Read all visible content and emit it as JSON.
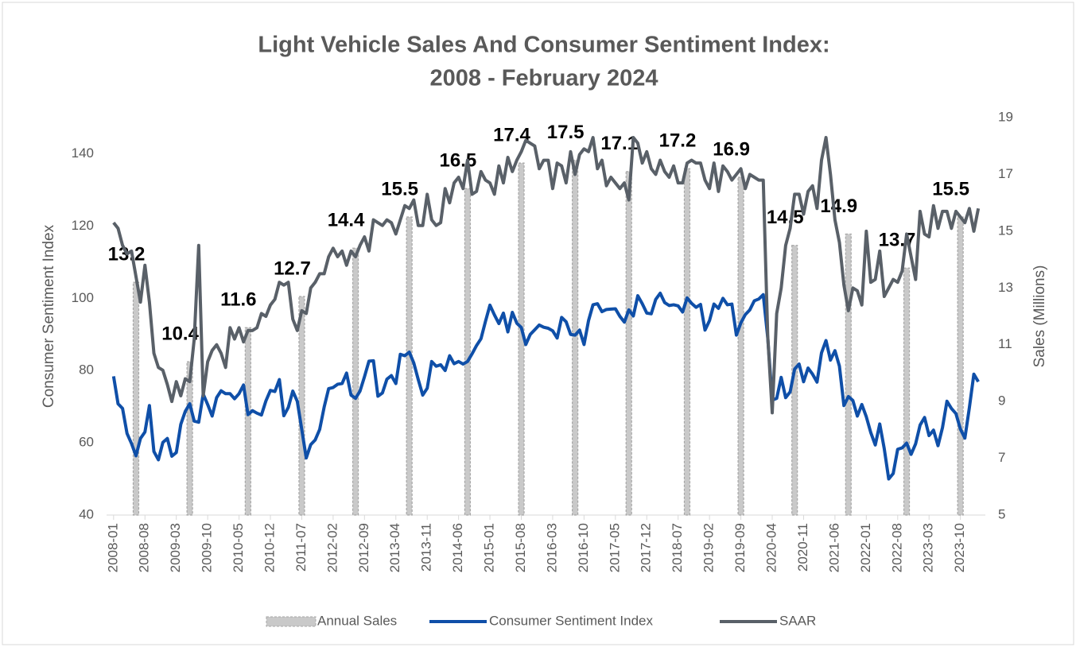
{
  "chart_data": {
    "type": "combo",
    "title": [
      "Light Vehicle Sales And Consumer Sentiment Index:",
      "2008 - February 2024"
    ],
    "y_label": "Consumer Sentiment Index",
    "y2_label": "Sales (Millions)",
    "ylim": [
      40,
      150
    ],
    "yticks": [
      40,
      60,
      80,
      100,
      120,
      140
    ],
    "y2lim": [
      5,
      19
    ],
    "y2ticks": [
      5,
      7,
      9,
      11,
      13,
      15,
      17,
      19
    ],
    "categories": [
      "2008-01",
      null,
      null,
      null,
      null,
      null,
      null,
      "2008-08",
      null,
      null,
      null,
      null,
      null,
      null,
      "2009-03",
      null,
      null,
      null,
      null,
      null,
      null,
      "2009-10",
      null,
      null,
      null,
      null,
      null,
      null,
      "2010-05",
      null,
      null,
      null,
      null,
      null,
      null,
      "2010-12",
      null,
      null,
      null,
      null,
      null,
      null,
      "2011-07",
      null,
      null,
      null,
      null,
      null,
      null,
      "2012-02",
      null,
      null,
      null,
      null,
      null,
      null,
      "2012-09",
      null,
      null,
      null,
      null,
      null,
      null,
      "2013-04",
      null,
      null,
      null,
      null,
      null,
      null,
      "2013-11",
      null,
      null,
      null,
      null,
      null,
      null,
      "2014-06",
      null,
      null,
      null,
      null,
      null,
      null,
      "2015-01",
      null,
      null,
      null,
      null,
      null,
      null,
      "2015-08",
      null,
      null,
      null,
      null,
      null,
      null,
      "2016-03",
      null,
      null,
      null,
      null,
      null,
      null,
      "2016-10",
      null,
      null,
      null,
      null,
      null,
      null,
      "2017-05",
      null,
      null,
      null,
      null,
      null,
      null,
      "2017-12",
      null,
      null,
      null,
      null,
      null,
      null,
      "2018-07",
      null,
      null,
      null,
      null,
      null,
      null,
      "2019-02",
      null,
      null,
      null,
      null,
      null,
      null,
      "2019-09",
      null,
      null,
      null,
      null,
      null,
      null,
      "2020-04",
      null,
      null,
      null,
      null,
      null,
      null,
      "2020-11",
      null,
      null,
      null,
      null,
      null,
      null,
      "2021-06",
      null,
      null,
      null,
      null,
      null,
      null,
      "2022-01",
      null,
      null,
      null,
      null,
      null,
      null,
      "2022-08",
      null,
      null,
      null,
      null,
      null,
      null,
      "2023-03",
      null,
      null,
      null,
      null,
      null,
      null,
      "2023-10",
      null,
      null,
      null,
      null
    ],
    "series": [
      {
        "name": "Annual Sales",
        "type": "bar",
        "axis": "y2",
        "color": "#c9c9c9",
        "edge": "#a6a6a6",
        "values": [
          null,
          null,
          null,
          null,
          null,
          13.2,
          null,
          null,
          null,
          null,
          null,
          null,
          null,
          null,
          null,
          null,
          null,
          10.4,
          null,
          null,
          null,
          null,
          null,
          null,
          null,
          null,
          null,
          null,
          null,
          null,
          11.6,
          null,
          null,
          null,
          null,
          null,
          null,
          null,
          null,
          null,
          null,
          null,
          12.7,
          null,
          null,
          null,
          null,
          null,
          null,
          null,
          null,
          null,
          null,
          null,
          14.4,
          null,
          null,
          null,
          null,
          null,
          null,
          null,
          null,
          null,
          null,
          null,
          15.5,
          null,
          null,
          null,
          null,
          null,
          null,
          null,
          null,
          null,
          null,
          null,
          null,
          16.5,
          null,
          null,
          null,
          null,
          null,
          null,
          null,
          null,
          null,
          null,
          null,
          17.4,
          null,
          null,
          null,
          null,
          null,
          null,
          null,
          null,
          null,
          null,
          null,
          17.5,
          null,
          null,
          null,
          null,
          null,
          null,
          null,
          null,
          null,
          null,
          null,
          17.1,
          null,
          null,
          null,
          null,
          null,
          null,
          null,
          null,
          null,
          null,
          null,
          null,
          17.2,
          null,
          null,
          null,
          null,
          null,
          null,
          null,
          null,
          null,
          null,
          null,
          16.9,
          null,
          null,
          null,
          null,
          null,
          null,
          null,
          null,
          null,
          null,
          null,
          14.5,
          null,
          null,
          null,
          null,
          null,
          null,
          null,
          null,
          null,
          null,
          null,
          14.9,
          null,
          null,
          null,
          null,
          null,
          null,
          null,
          null,
          null,
          null,
          null,
          null,
          13.7,
          null,
          null,
          null,
          null,
          null,
          null,
          null,
          null,
          null,
          null,
          null,
          15.5,
          null,
          null,
          null,
          null
        ]
      },
      {
        "name": "Consumer Sentiment Index",
        "type": "line",
        "axis": "y",
        "color": "#0f4fa8",
        "values": [
          78.4,
          70.8,
          69.5,
          62.6,
          59.8,
          56.4,
          61.2,
          63.0,
          70.3,
          57.6,
          55.3,
          60.1,
          61.2,
          56.3,
          57.3,
          65.1,
          68.7,
          70.8,
          66.0,
          65.7,
          73.5,
          70.6,
          67.4,
          72.5,
          74.4,
          73.6,
          73.6,
          72.2,
          73.6,
          76.0,
          67.8,
          68.9,
          68.2,
          67.7,
          71.6,
          74.5,
          74.2,
          77.5,
          67.5,
          69.8,
          74.3,
          71.5,
          63.7,
          55.8,
          59.5,
          60.8,
          63.7,
          69.9,
          75.0,
          75.3,
          76.2,
          76.4,
          79.3,
          73.2,
          72.3,
          74.3,
          78.3,
          82.6,
          82.7,
          72.9,
          73.8,
          77.6,
          78.6,
          76.4,
          84.5,
          84.1,
          85.1,
          82.1,
          77.5,
          73.2,
          75.1,
          82.5,
          81.2,
          81.6,
          80.0,
          84.1,
          81.9,
          82.5,
          81.8,
          82.5,
          84.6,
          86.9,
          88.8,
          93.6,
          98.1,
          95.4,
          93.0,
          95.9,
          90.7,
          96.1,
          93.1,
          91.9,
          87.2,
          90.0,
          91.3,
          92.6,
          92.0,
          91.7,
          91.0,
          89.0,
          94.7,
          93.5,
          90.0,
          89.8,
          91.2,
          87.2,
          93.8,
          98.2,
          98.5,
          96.3,
          96.9,
          97.0,
          97.1,
          95.0,
          93.4,
          96.8,
          95.1,
          100.7,
          98.5,
          95.9,
          95.7,
          99.7,
          101.4,
          98.8,
          98.0,
          98.2,
          97.9,
          96.2,
          100.1,
          98.6,
          97.5,
          98.3,
          91.2,
          93.8,
          98.4,
          97.2,
          100.0,
          98.2,
          98.4,
          89.8,
          93.2,
          95.5,
          96.8,
          99.3,
          99.8,
          101.0,
          89.1,
          71.8,
          72.3,
          78.1,
          72.5,
          74.1,
          80.4,
          81.8,
          76.9,
          80.7,
          79.0,
          76.8,
          84.9,
          88.3,
          82.9,
          85.5,
          81.2,
          70.3,
          72.8,
          71.7,
          67.4,
          70.6,
          67.2,
          62.8,
          59.4,
          65.2,
          58.4,
          50.0,
          51.5,
          58.2,
          58.6,
          59.9,
          56.8,
          59.7,
          64.9,
          67.0,
          62.0,
          63.5,
          59.2,
          64.2,
          71.5,
          69.5,
          68.1,
          63.8,
          61.3,
          69.7,
          79.0,
          76.9
        ]
      },
      {
        "name": "SAAR",
        "type": "line",
        "axis": "y2",
        "color": "#596068",
        "values": [
          15.3,
          15.1,
          14.5,
          14.2,
          14.3,
          13.4,
          12.5,
          13.8,
          12.5,
          10.7,
          10.2,
          10.1,
          9.6,
          9,
          9.7,
          9.2,
          9.8,
          9.7,
          11.2,
          14.5,
          9.2,
          10.4,
          10.8,
          11,
          10.7,
          10.2,
          11.6,
          11.2,
          11.6,
          11.1,
          11.5,
          11.5,
          11.6,
          12.1,
          12,
          12.4,
          12.6,
          13.2,
          13.1,
          13.2,
          11.9,
          11.5,
          12.2,
          12.1,
          13,
          13.2,
          13.5,
          13.5,
          14.1,
          14.4,
          14.1,
          14.3,
          13.8,
          14.3,
          14.1,
          14.5,
          14.8,
          14.3,
          15.4,
          15.3,
          15.2,
          15.4,
          15.3,
          14.9,
          15.4,
          15.9,
          15.8,
          16.1,
          15.2,
          15.2,
          16.3,
          15.4,
          15.2,
          15.3,
          16.5,
          16,
          16.7,
          16.9,
          16.5,
          17.5,
          16.3,
          16.4,
          17.1,
          16.8,
          16.7,
          16.3,
          17.3,
          16.7,
          17.6,
          17.1,
          17.5,
          17.8,
          18.2,
          18.1,
          18,
          17.2,
          17.5,
          17.5,
          16.5,
          17.4,
          17.3,
          16.7,
          17.8,
          17,
          17.7,
          17.9,
          17.8,
          18.3,
          17.2,
          17.5,
          16.6,
          16.9,
          16.7,
          16.5,
          16.7,
          16.1,
          18.3,
          18.1,
          17.4,
          17.8,
          17.2,
          17,
          17.5,
          17.1,
          16.9,
          17.3,
          16.7,
          16.7,
          17.4,
          17.5,
          17.4,
          17.4,
          16.8,
          16.5,
          17.4,
          16.4,
          17.3,
          17.1,
          16.8,
          17,
          17.2,
          16.5,
          17,
          16.9,
          16.8,
          16.8,
          11.3,
          8.6,
          12.1,
          13,
          14.5,
          15.1,
          16.3,
          16.3,
          15.6,
          16.4,
          16.6,
          15.8,
          17.5,
          18.3,
          17,
          15.4,
          14.6,
          13.1,
          12.2,
          13,
          12.9,
          12.4,
          15,
          13.2,
          13.3,
          14.3,
          12.7,
          13,
          13.3,
          13.2,
          13.6,
          14.9,
          14.1,
          13.3,
          15.7,
          14.9,
          14.8,
          15.9,
          15.1,
          15.7,
          15.7,
          15.1,
          15.7,
          15.5,
          15.3,
          15.8,
          15,
          15.8
        ]
      }
    ],
    "legend": "bottom"
  }
}
